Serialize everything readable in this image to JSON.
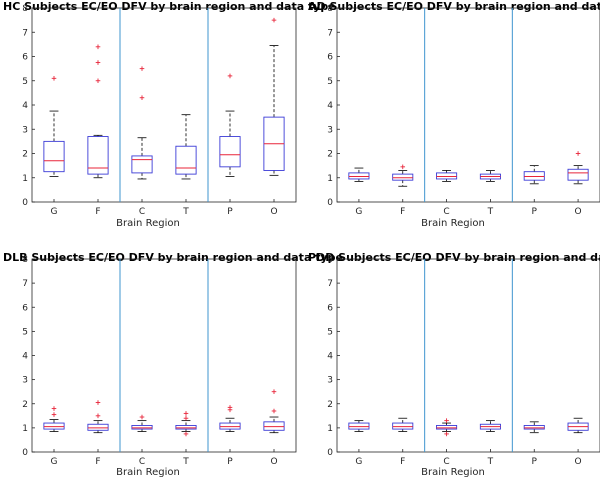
{
  "figure": {
    "colors": {
      "box": "#3b3bd6",
      "median": "#e8253a",
      "outlier": "#e8253a",
      "whisker": "#000000",
      "divider": "#3f95cf",
      "axis": "#262626"
    }
  },
  "chart_data": [
    {
      "type": "box",
      "title": "HC Subjects EC/EO DFV by brain region and data type",
      "xlabel": "Brain Region",
      "ylabel": "",
      "ylim": [
        0,
        8
      ],
      "yticks": [
        0,
        1,
        2,
        3,
        4,
        5,
        6,
        7,
        8
      ],
      "categories": [
        "G",
        "F",
        "C",
        "T",
        "P",
        "O"
      ],
      "dividers_after": [
        2,
        4
      ],
      "boxes": [
        {
          "min": 1.05,
          "q1": 1.25,
          "median": 1.7,
          "q3": 2.5,
          "max": 3.75,
          "outliers": [
            5.1
          ]
        },
        {
          "min": 1.0,
          "q1": 1.15,
          "median": 1.4,
          "q3": 2.7,
          "max": 2.75,
          "outliers": [
            5.0,
            5.75,
            6.4
          ]
        },
        {
          "min": 0.95,
          "q1": 1.2,
          "median": 1.75,
          "q3": 1.9,
          "max": 2.65,
          "outliers": [
            4.3,
            5.5
          ]
        },
        {
          "min": 0.95,
          "q1": 1.15,
          "median": 1.4,
          "q3": 2.3,
          "max": 3.6,
          "outliers": []
        },
        {
          "min": 1.05,
          "q1": 1.45,
          "median": 1.95,
          "q3": 2.7,
          "max": 3.75,
          "outliers": [
            5.2
          ]
        },
        {
          "min": 1.1,
          "q1": 1.3,
          "median": 2.4,
          "q3": 3.5,
          "max": 6.45,
          "outliers": [
            7.5
          ]
        }
      ]
    },
    {
      "type": "box",
      "title": "AD Subjects EC/EO DFV by brain region and data type",
      "xlabel": "Brain Region",
      "ylabel": "",
      "ylim": [
        0,
        8
      ],
      "yticks": [
        0,
        1,
        2,
        3,
        4,
        5,
        6,
        7,
        8
      ],
      "categories": [
        "G",
        "F",
        "C",
        "T",
        "P",
        "O"
      ],
      "dividers_after": [
        2,
        4
      ],
      "boxes": [
        {
          "min": 0.85,
          "q1": 0.95,
          "median": 1.05,
          "q3": 1.2,
          "max": 1.4,
          "outliers": []
        },
        {
          "min": 0.65,
          "q1": 0.9,
          "median": 1.0,
          "q3": 1.15,
          "max": 1.3,
          "outliers": [
            1.45
          ]
        },
        {
          "min": 0.85,
          "q1": 0.95,
          "median": 1.05,
          "q3": 1.2,
          "max": 1.3,
          "outliers": []
        },
        {
          "min": 0.85,
          "q1": 0.95,
          "median": 1.05,
          "q3": 1.15,
          "max": 1.3,
          "outliers": []
        },
        {
          "min": 0.75,
          "q1": 0.9,
          "median": 1.05,
          "q3": 1.25,
          "max": 1.5,
          "outliers": []
        },
        {
          "min": 0.75,
          "q1": 0.9,
          "median": 1.2,
          "q3": 1.35,
          "max": 1.5,
          "outliers": [
            2.0
          ]
        }
      ]
    },
    {
      "type": "box",
      "title": "DLB Subjects EC/EO DFV by brain region and data type",
      "xlabel": "Brain Region",
      "ylabel": "",
      "ylim": [
        0,
        8
      ],
      "yticks": [
        0,
        1,
        2,
        3,
        4,
        5,
        6,
        7,
        8
      ],
      "categories": [
        "G",
        "F",
        "C",
        "T",
        "P",
        "O"
      ],
      "dividers_after": [
        2,
        4
      ],
      "boxes": [
        {
          "min": 0.85,
          "q1": 0.95,
          "median": 1.05,
          "q3": 1.2,
          "max": 1.35,
          "outliers": [
            1.55,
            1.8
          ]
        },
        {
          "min": 0.8,
          "q1": 0.9,
          "median": 1.0,
          "q3": 1.15,
          "max": 1.3,
          "outliers": [
            1.5,
            2.05
          ]
        },
        {
          "min": 0.85,
          "q1": 0.95,
          "median": 1.0,
          "q3": 1.1,
          "max": 1.3,
          "outliers": [
            1.45
          ]
        },
        {
          "min": 0.85,
          "q1": 0.95,
          "median": 1.0,
          "q3": 1.1,
          "max": 1.3,
          "outliers": [
            0.75,
            1.4,
            1.6
          ]
        },
        {
          "min": 0.85,
          "q1": 0.95,
          "median": 1.05,
          "q3": 1.2,
          "max": 1.4,
          "outliers": [
            1.75,
            1.85
          ]
        },
        {
          "min": 0.8,
          "q1": 0.9,
          "median": 1.05,
          "q3": 1.25,
          "max": 1.45,
          "outliers": [
            1.7,
            2.5
          ]
        }
      ]
    },
    {
      "type": "box",
      "title": "PDD Subjects EC/EO DFV by brain region and data type",
      "xlabel": "Brain Region",
      "ylabel": "",
      "ylim": [
        0,
        8
      ],
      "yticks": [
        0,
        1,
        2,
        3,
        4,
        5,
        6,
        7,
        8
      ],
      "categories": [
        "G",
        "F",
        "C",
        "T",
        "P",
        "O"
      ],
      "dividers_after": [
        2,
        4
      ],
      "boxes": [
        {
          "min": 0.85,
          "q1": 0.95,
          "median": 1.05,
          "q3": 1.2,
          "max": 1.3,
          "outliers": []
        },
        {
          "min": 0.85,
          "q1": 0.95,
          "median": 1.05,
          "q3": 1.2,
          "max": 1.4,
          "outliers": []
        },
        {
          "min": 0.85,
          "q1": 0.95,
          "median": 1.0,
          "q3": 1.1,
          "max": 1.2,
          "outliers": [
            0.75,
            1.3
          ]
        },
        {
          "min": 0.85,
          "q1": 0.95,
          "median": 1.05,
          "q3": 1.15,
          "max": 1.3,
          "outliers": []
        },
        {
          "min": 0.8,
          "q1": 0.95,
          "median": 1.0,
          "q3": 1.1,
          "max": 1.25,
          "outliers": []
        },
        {
          "min": 0.8,
          "q1": 0.9,
          "median": 1.05,
          "q3": 1.2,
          "max": 1.4,
          "outliers": []
        }
      ]
    }
  ]
}
